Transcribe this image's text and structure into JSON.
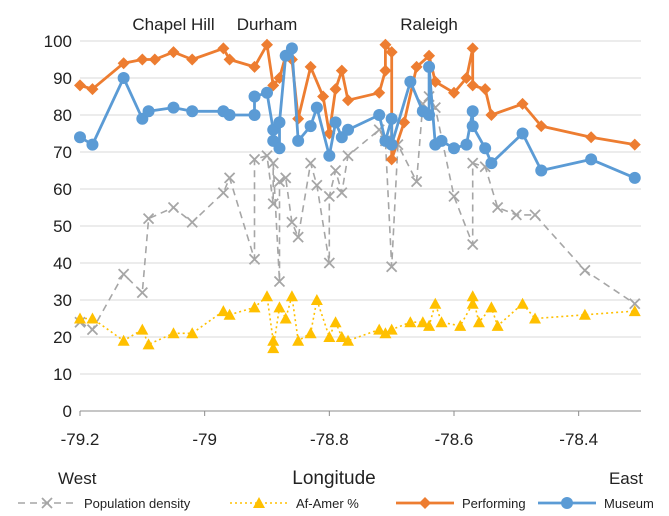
{
  "chart_data": {
    "type": "line",
    "xlabel": "Longitude",
    "xlim": [
      -79.2,
      -78.3
    ],
    "ylim": [
      0,
      100
    ],
    "x_ticks": [
      -79.2,
      -79,
      -78.8,
      -78.6,
      -78.4
    ],
    "x_tick_labels": [
      "-79.2",
      "-79",
      "-78.8",
      "-78.6",
      "-78.4"
    ],
    "y_ticks": [
      0,
      10,
      20,
      30,
      40,
      50,
      60,
      70,
      80,
      90,
      100
    ],
    "y_tick_labels": [
      "0",
      "10",
      "20",
      "30",
      "40",
      "50",
      "60",
      "70",
      "80",
      "90",
      "100"
    ],
    "grid": "horizontal",
    "legend_position": "bottom",
    "city_labels": [
      {
        "text": "Chapel Hill",
        "x": -79.05
      },
      {
        "text": "Durham",
        "x": -78.9
      },
      {
        "text": "Raleigh",
        "x": -78.64
      }
    ],
    "direction_labels": {
      "west": "West",
      "east": "East"
    },
    "series": [
      {
        "name": "Population density",
        "color": "#a6a6a6",
        "marker": "x",
        "dash": "dashed",
        "points": [
          [
            -79.2,
            24
          ],
          [
            -79.18,
            22
          ],
          [
            -79.13,
            37
          ],
          [
            -79.1,
            32
          ],
          [
            -79.09,
            52
          ],
          [
            -79.05,
            55
          ],
          [
            -79.02,
            51
          ],
          [
            -78.97,
            59
          ],
          [
            -78.96,
            63
          ],
          [
            -78.92,
            41
          ],
          [
            -78.92,
            68
          ],
          [
            -78.9,
            69
          ],
          [
            -78.89,
            56
          ],
          [
            -78.89,
            67
          ],
          [
            -78.88,
            35
          ],
          [
            -78.88,
            62
          ],
          [
            -78.87,
            63
          ],
          [
            -78.86,
            51
          ],
          [
            -78.85,
            47
          ],
          [
            -78.83,
            67
          ],
          [
            -78.82,
            61
          ],
          [
            -78.8,
            40
          ],
          [
            -78.8,
            58
          ],
          [
            -78.79,
            65
          ],
          [
            -78.78,
            59
          ],
          [
            -78.77,
            69
          ],
          [
            -78.72,
            76
          ],
          [
            -78.71,
            73
          ],
          [
            -78.7,
            39
          ],
          [
            -78.69,
            72
          ],
          [
            -78.66,
            62
          ],
          [
            -78.65,
            83
          ],
          [
            -78.64,
            85
          ],
          [
            -78.63,
            82
          ],
          [
            -78.6,
            58
          ],
          [
            -78.57,
            45
          ],
          [
            -78.57,
            67
          ],
          [
            -78.55,
            66
          ],
          [
            -78.53,
            55
          ],
          [
            -78.5,
            53
          ],
          [
            -78.47,
            53
          ],
          [
            -78.39,
            38
          ],
          [
            -78.31,
            29
          ]
        ]
      },
      {
        "name": "Af-Amer %",
        "color": "#ffc000",
        "marker": "triangle",
        "dash": "dotted",
        "points": [
          [
            -79.2,
            25
          ],
          [
            -79.18,
            25
          ],
          [
            -79.13,
            19
          ],
          [
            -79.1,
            22
          ],
          [
            -79.09,
            18
          ],
          [
            -79.05,
            21
          ],
          [
            -79.02,
            21
          ],
          [
            -78.97,
            27
          ],
          [
            -78.96,
            26
          ],
          [
            -78.92,
            28
          ],
          [
            -78.9,
            31
          ],
          [
            -78.89,
            19
          ],
          [
            -78.89,
            17
          ],
          [
            -78.88,
            28
          ],
          [
            -78.87,
            25
          ],
          [
            -78.86,
            31
          ],
          [
            -78.85,
            19
          ],
          [
            -78.83,
            21
          ],
          [
            -78.82,
            30
          ],
          [
            -78.8,
            20
          ],
          [
            -78.79,
            24
          ],
          [
            -78.78,
            20
          ],
          [
            -78.77,
            19
          ],
          [
            -78.72,
            22
          ],
          [
            -78.71,
            21
          ],
          [
            -78.7,
            22
          ],
          [
            -78.67,
            24
          ],
          [
            -78.65,
            24
          ],
          [
            -78.64,
            23
          ],
          [
            -78.63,
            29
          ],
          [
            -78.62,
            24
          ],
          [
            -78.59,
            23
          ],
          [
            -78.57,
            29
          ],
          [
            -78.57,
            31
          ],
          [
            -78.56,
            24
          ],
          [
            -78.54,
            28
          ],
          [
            -78.53,
            23
          ],
          [
            -78.49,
            29
          ],
          [
            -78.47,
            25
          ],
          [
            -78.39,
            26
          ],
          [
            -78.31,
            27
          ]
        ]
      },
      {
        "name": "Performing",
        "color": "#ed7d31",
        "marker": "diamond",
        "dash": "solid",
        "points": [
          [
            -79.2,
            88
          ],
          [
            -79.18,
            87
          ],
          [
            -79.13,
            94
          ],
          [
            -79.1,
            95
          ],
          [
            -79.08,
            95
          ],
          [
            -79.05,
            97
          ],
          [
            -79.02,
            95
          ],
          [
            -78.97,
            98
          ],
          [
            -78.96,
            95
          ],
          [
            -78.92,
            93
          ],
          [
            -78.9,
            99
          ],
          [
            -78.89,
            88
          ],
          [
            -78.88,
            90
          ],
          [
            -78.87,
            96
          ],
          [
            -78.86,
            95
          ],
          [
            -78.85,
            79
          ],
          [
            -78.83,
            93
          ],
          [
            -78.81,
            85
          ],
          [
            -78.8,
            75
          ],
          [
            -78.79,
            87
          ],
          [
            -78.78,
            92
          ],
          [
            -78.77,
            84
          ],
          [
            -78.72,
            86
          ],
          [
            -78.71,
            92
          ],
          [
            -78.71,
            99
          ],
          [
            -78.7,
            97
          ],
          [
            -78.7,
            68
          ],
          [
            -78.68,
            78
          ],
          [
            -78.66,
            93
          ],
          [
            -78.64,
            96
          ],
          [
            -78.63,
            89
          ],
          [
            -78.6,
            86
          ],
          [
            -78.58,
            90
          ],
          [
            -78.57,
            98
          ],
          [
            -78.57,
            88
          ],
          [
            -78.55,
            87
          ],
          [
            -78.54,
            80
          ],
          [
            -78.49,
            83
          ],
          [
            -78.46,
            77
          ],
          [
            -78.38,
            74
          ],
          [
            -78.31,
            72
          ]
        ]
      },
      {
        "name": "Museum",
        "color": "#5b9bd5",
        "marker": "circle",
        "dash": "solid",
        "points": [
          [
            -79.2,
            74
          ],
          [
            -79.18,
            72
          ],
          [
            -79.13,
            90
          ],
          [
            -79.1,
            79
          ],
          [
            -79.09,
            81
          ],
          [
            -79.05,
            82
          ],
          [
            -79.02,
            81
          ],
          [
            -78.97,
            81
          ],
          [
            -78.96,
            80
          ],
          [
            -78.92,
            80
          ],
          [
            -78.92,
            85
          ],
          [
            -78.9,
            86
          ],
          [
            -78.89,
            76
          ],
          [
            -78.89,
            73
          ],
          [
            -78.88,
            71
          ],
          [
            -78.88,
            78
          ],
          [
            -78.87,
            96
          ],
          [
            -78.86,
            98
          ],
          [
            -78.85,
            73
          ],
          [
            -78.83,
            77
          ],
          [
            -78.82,
            82
          ],
          [
            -78.8,
            69
          ],
          [
            -78.79,
            78
          ],
          [
            -78.78,
            74
          ],
          [
            -78.77,
            76
          ],
          [
            -78.72,
            80
          ],
          [
            -78.71,
            73
          ],
          [
            -78.7,
            79
          ],
          [
            -78.7,
            72
          ],
          [
            -78.67,
            89
          ],
          [
            -78.65,
            81
          ],
          [
            -78.64,
            80
          ],
          [
            -78.64,
            93
          ],
          [
            -78.63,
            72
          ],
          [
            -78.62,
            73
          ],
          [
            -78.6,
            71
          ],
          [
            -78.58,
            72
          ],
          [
            -78.57,
            81
          ],
          [
            -78.57,
            77
          ],
          [
            -78.55,
            71
          ],
          [
            -78.54,
            67
          ],
          [
            -78.49,
            75
          ],
          [
            -78.46,
            65
          ],
          [
            -78.38,
            68
          ],
          [
            -78.31,
            63
          ]
        ]
      }
    ]
  }
}
